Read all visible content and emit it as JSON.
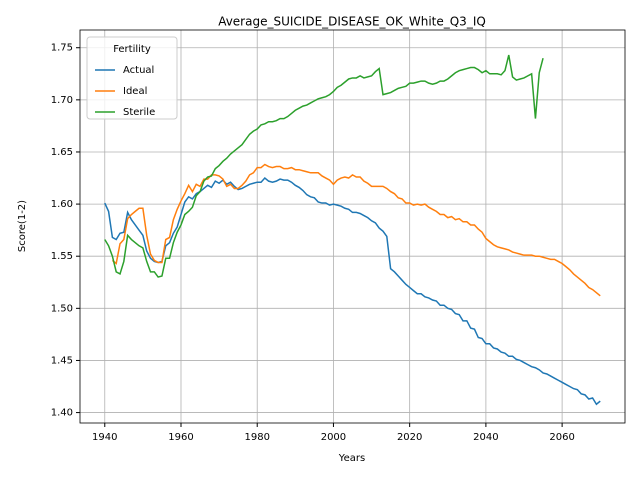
{
  "chart_data": {
    "type": "line",
    "title": "Average_SUICIDE_DISEASE_OK_White_Q3_IQ",
    "x_label": "Years",
    "y_label": "Score(1-2)",
    "legend_title": "Fertility",
    "legend_loc": "upper left",
    "grid": true,
    "x": [
      1940,
      1941,
      1942,
      1943,
      1944,
      1945,
      1946,
      1947,
      1948,
      1949,
      1950,
      1951,
      1952,
      1953,
      1954,
      1955,
      1956,
      1957,
      1958,
      1959,
      1960,
      1961,
      1962,
      1963,
      1964,
      1965,
      1966,
      1967,
      1968,
      1969,
      1970,
      1971,
      1972,
      1973,
      1974,
      1975,
      1976,
      1977,
      1978,
      1979,
      1980,
      1981,
      1982,
      1983,
      1984,
      1985,
      1986,
      1987,
      1988,
      1989,
      1990,
      1991,
      1992,
      1993,
      1994,
      1995,
      1996,
      1997,
      1998,
      1999,
      2000,
      2001,
      2002,
      2003,
      2004,
      2005,
      2006,
      2007,
      2008,
      2009,
      2010,
      2011,
      2012,
      2013,
      2014,
      2015,
      2016,
      2017,
      2018,
      2019,
      2020,
      2021,
      2022,
      2023,
      2024,
      2025,
      2026,
      2027,
      2028,
      2029,
      2030,
      2031,
      2032,
      2033,
      2034,
      2035,
      2036,
      2037,
      2038,
      2039,
      2040,
      2041,
      2042,
      2043,
      2044,
      2045,
      2046,
      2047,
      2048,
      2049,
      2050,
      2051,
      2052,
      2053,
      2054,
      2055,
      2056,
      2057,
      2058,
      2059,
      2060,
      2061,
      2062,
      2063,
      2064,
      2065,
      2066,
      2067,
      2068,
      2069,
      2070
    ],
    "series": [
      {
        "name": "Actual",
        "color": "#1f77b4",
        "values": [
          1.601,
          1.593,
          1.568,
          1.566,
          1.572,
          1.573,
          1.592,
          1.585,
          1.58,
          1.575,
          1.57,
          1.555,
          1.548,
          1.545,
          1.544,
          1.545,
          1.56,
          1.563,
          1.572,
          1.578,
          1.59,
          1.602,
          1.607,
          1.605,
          1.61,
          1.612,
          1.615,
          1.618,
          1.616,
          1.622,
          1.62,
          1.623,
          1.619,
          1.621,
          1.617,
          1.614,
          1.615,
          1.617,
          1.619,
          1.62,
          1.621,
          1.621,
          1.625,
          1.622,
          1.621,
          1.622,
          1.624,
          1.623,
          1.623,
          1.621,
          1.618,
          1.616,
          1.613,
          1.609,
          1.607,
          1.606,
          1.602,
          1.601,
          1.601,
          1.599,
          1.6,
          1.599,
          1.598,
          1.596,
          1.595,
          1.592,
          1.592,
          1.591,
          1.589,
          1.587,
          1.584,
          1.582,
          1.577,
          1.574,
          1.569,
          1.538,
          1.535,
          1.531,
          1.527,
          1.523,
          1.52,
          1.517,
          1.514,
          1.514,
          1.511,
          1.51,
          1.508,
          1.507,
          1.503,
          1.503,
          1.5,
          1.499,
          1.495,
          1.494,
          1.488,
          1.488,
          1.481,
          1.48,
          1.472,
          1.471,
          1.466,
          1.466,
          1.462,
          1.461,
          1.458,
          1.457,
          1.454,
          1.454,
          1.451,
          1.45,
          1.448,
          1.446,
          1.444,
          1.443,
          1.441,
          1.438,
          1.437,
          1.435,
          1.433,
          1.431,
          1.429,
          1.427,
          1.425,
          1.423,
          1.422,
          1.418,
          1.417,
          1.413,
          1.414,
          1.408,
          1.411
        ]
      },
      {
        "name": "Ideal",
        "color": "#ff7f0e",
        "values": [
          null,
          null,
          1.546,
          1.543,
          1.562,
          1.566,
          1.586,
          1.59,
          1.593,
          1.596,
          1.596,
          1.57,
          1.552,
          1.546,
          1.544,
          1.544,
          1.566,
          1.568,
          1.585,
          1.595,
          1.603,
          1.61,
          1.618,
          1.612,
          1.619,
          1.617,
          1.624,
          1.624,
          1.628,
          1.628,
          1.627,
          1.624,
          1.617,
          1.619,
          1.615,
          1.615,
          1.618,
          1.622,
          1.628,
          1.63,
          1.635,
          1.635,
          1.638,
          1.636,
          1.635,
          1.636,
          1.636,
          1.634,
          1.634,
          1.635,
          1.633,
          1.633,
          1.632,
          1.631,
          1.63,
          1.63,
          1.63,
          1.627,
          1.625,
          1.623,
          1.619,
          1.623,
          1.625,
          1.626,
          1.625,
          1.628,
          1.626,
          1.626,
          1.622,
          1.62,
          1.617,
          1.617,
          1.617,
          1.617,
          1.615,
          1.612,
          1.61,
          1.606,
          1.605,
          1.601,
          1.601,
          1.599,
          1.6,
          1.599,
          1.6,
          1.597,
          1.595,
          1.593,
          1.59,
          1.59,
          1.587,
          1.588,
          1.585,
          1.586,
          1.583,
          1.583,
          1.58,
          1.58,
          1.576,
          1.573,
          1.567,
          1.564,
          1.561,
          1.559,
          1.558,
          1.557,
          1.556,
          1.554,
          1.553,
          1.552,
          1.551,
          1.551,
          1.551,
          1.55,
          1.55,
          1.549,
          1.548,
          1.547,
          1.547,
          1.545,
          1.543,
          1.54,
          1.537,
          1.533,
          1.53,
          1.527,
          1.524,
          1.52,
          1.518,
          1.515,
          1.512
        ]
      },
      {
        "name": "Sterile",
        "color": "#2ca02c",
        "values": [
          1.566,
          1.56,
          1.55,
          1.535,
          1.533,
          1.545,
          1.57,
          1.566,
          1.563,
          1.56,
          1.558,
          1.545,
          1.535,
          1.535,
          1.53,
          1.531,
          1.548,
          1.548,
          1.563,
          1.573,
          1.58,
          1.59,
          1.593,
          1.597,
          1.608,
          1.612,
          1.622,
          1.626,
          1.627,
          1.634,
          1.637,
          1.641,
          1.644,
          1.648,
          1.651,
          1.654,
          1.657,
          1.662,
          1.667,
          1.67,
          1.672,
          1.676,
          1.677,
          1.679,
          1.679,
          1.68,
          1.682,
          1.682,
          1.684,
          1.687,
          1.69,
          1.692,
          1.694,
          1.695,
          1.697,
          1.699,
          1.701,
          1.702,
          1.703,
          1.705,
          1.708,
          1.712,
          1.714,
          1.717,
          1.72,
          1.721,
          1.721,
          1.723,
          1.721,
          1.722,
          1.723,
          1.727,
          1.73,
          1.705,
          1.706,
          1.707,
          1.709,
          1.711,
          1.712,
          1.713,
          1.716,
          1.716,
          1.717,
          1.718,
          1.718,
          1.716,
          1.715,
          1.716,
          1.718,
          1.718,
          1.72,
          1.723,
          1.726,
          1.728,
          1.729,
          1.73,
          1.731,
          1.731,
          1.729,
          1.726,
          1.728,
          1.725,
          1.725,
          1.725,
          1.724,
          1.728,
          1.743,
          1.722,
          1.719,
          1.72,
          1.721,
          1.723,
          1.725,
          1.682,
          1.726,
          1.74,
          null,
          null,
          null,
          null,
          null,
          null,
          null,
          null,
          null,
          null,
          null,
          null,
          null,
          null,
          null
        ]
      }
    ],
    "xlim": [
      1933.5,
      2076.5
    ],
    "xticks": [
      1940,
      1960,
      1980,
      2000,
      2020,
      2040,
      2060
    ],
    "ylim": [
      1.39,
      1.767
    ],
    "yticks": [
      {
        "value": 1.4,
        "label": "1.40"
      },
      1.45,
      {
        "value": 1.5,
        "label": "1.50"
      },
      1.55,
      {
        "value": 1.6,
        "label": "1.60"
      },
      1.65,
      {
        "value": 1.7,
        "label": "1.70"
      },
      1.75
    ]
  }
}
